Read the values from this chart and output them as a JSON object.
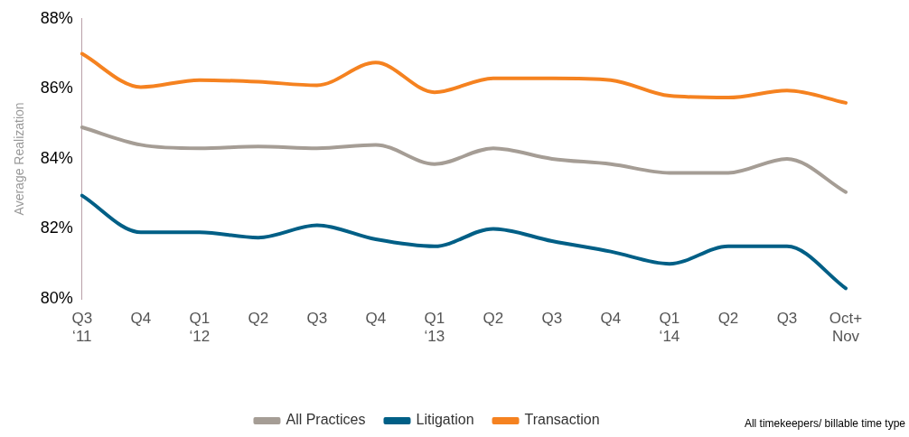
{
  "chart_data": {
    "type": "line",
    "ylabel": "Average Realization",
    "categories": [
      "Q3 ‘11",
      "Q4",
      "Q1 ‘12",
      "Q2",
      "Q3",
      "Q4",
      "Q1 ‘13",
      "Q2",
      "Q3",
      "Q4",
      "Q1 ‘14",
      "Q2",
      "Q3",
      "Oct+ Nov"
    ],
    "series": [
      {
        "name": "All Practices",
        "color": "#a59d95",
        "values": [
          84.9,
          84.4,
          84.3,
          84.35,
          84.3,
          84.4,
          83.85,
          84.3,
          84.0,
          83.85,
          83.6,
          83.6,
          84.0,
          83.05
        ]
      },
      {
        "name": "Litigation",
        "color": "#005f86",
        "values": [
          82.95,
          81.9,
          81.9,
          81.75,
          82.1,
          81.7,
          81.5,
          82.0,
          81.65,
          81.35,
          81.0,
          81.5,
          81.5,
          80.3
        ]
      },
      {
        "name": "Transaction",
        "color": "#f58220",
        "values": [
          87.0,
          86.05,
          86.25,
          86.2,
          86.1,
          86.75,
          85.9,
          86.3,
          86.3,
          86.25,
          85.8,
          85.75,
          85.95,
          85.6
        ]
      }
    ],
    "ylim": [
      80,
      88
    ],
    "yticks": [
      {
        "value": 80,
        "label": "80%"
      },
      {
        "value": 82,
        "label": "82%"
      },
      {
        "value": 84,
        "label": "84%"
      },
      {
        "value": 86,
        "label": "86%"
      },
      {
        "value": 88,
        "label": "88%"
      }
    ],
    "grid": false,
    "legend": "bottom",
    "marker": "none",
    "line_style": "solid",
    "annotations": [
      "All timekeepers/ billable time type"
    ]
  }
}
